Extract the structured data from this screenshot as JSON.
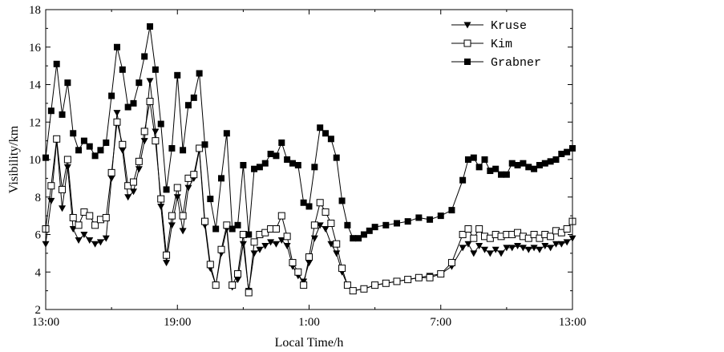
{
  "chart_data": {
    "type": "line",
    "xlabel": "Local Time/h",
    "ylabel": "Visibility/km",
    "xlim": [
      0,
      24
    ],
    "ylim": [
      2,
      18
    ],
    "x_ticks": [
      {
        "value": 0,
        "label": "13:00"
      },
      {
        "value": 6,
        "label": "19:00"
      },
      {
        "value": 12,
        "label": "1:00"
      },
      {
        "value": 18,
        "label": "7:00"
      },
      {
        "value": 24,
        "label": "13:00"
      }
    ],
    "y_ticks": [
      2,
      4,
      6,
      8,
      10,
      12,
      14,
      16,
      18
    ],
    "legend_position": "top-right",
    "series": [
      {
        "name": "Kruse",
        "marker": "triangle-down",
        "color": "#000000",
        "points": [
          [
            0,
            5.5
          ],
          [
            0.25,
            7.8
          ],
          [
            0.5,
            11.0
          ],
          [
            0.75,
            7.4
          ],
          [
            1.0,
            9.6
          ],
          [
            1.25,
            6.3
          ],
          [
            1.5,
            5.7
          ],
          [
            1.75,
            6.0
          ],
          [
            2.0,
            5.7
          ],
          [
            2.25,
            5.5
          ],
          [
            2.5,
            5.6
          ],
          [
            2.75,
            5.8
          ],
          [
            3.0,
            9.0
          ],
          [
            3.25,
            12.5
          ],
          [
            3.5,
            10.5
          ],
          [
            3.75,
            8.0
          ],
          [
            4.0,
            8.3
          ],
          [
            4.25,
            9.5
          ],
          [
            4.5,
            11.0
          ],
          [
            4.75,
            14.2
          ],
          [
            5.0,
            11.5
          ],
          [
            5.25,
            7.5
          ],
          [
            5.5,
            4.5
          ],
          [
            5.75,
            6.5
          ],
          [
            6.0,
            8.0
          ],
          [
            6.25,
            6.2
          ],
          [
            6.5,
            8.5
          ],
          [
            6.75,
            9.0
          ],
          [
            7.0,
            10.5
          ],
          [
            7.25,
            6.5
          ],
          [
            7.5,
            4.2
          ],
          [
            7.75,
            3.3
          ],
          [
            8.0,
            5.0
          ],
          [
            8.25,
            6.3
          ],
          [
            8.5,
            3.2
          ],
          [
            8.75,
            3.6
          ],
          [
            9.0,
            5.5
          ],
          [
            9.25,
            3.0
          ],
          [
            9.5,
            5.0
          ],
          [
            9.75,
            5.2
          ],
          [
            10.0,
            5.4
          ],
          [
            10.25,
            5.6
          ],
          [
            10.5,
            5.5
          ],
          [
            10.75,
            5.7
          ],
          [
            11.0,
            5.4
          ],
          [
            11.25,
            4.3
          ],
          [
            11.5,
            3.8
          ],
          [
            11.75,
            3.5
          ],
          [
            12.0,
            4.5
          ],
          [
            12.25,
            5.8
          ],
          [
            12.5,
            6.5
          ],
          [
            12.75,
            6.3
          ],
          [
            13.0,
            5.5
          ],
          [
            13.25,
            5.0
          ],
          [
            13.5,
            4.0
          ],
          [
            13.75,
            3.3
          ],
          [
            14.0,
            3.0
          ],
          [
            14.5,
            3.1
          ],
          [
            15.0,
            3.3
          ],
          [
            15.5,
            3.4
          ],
          [
            16.0,
            3.5
          ],
          [
            16.5,
            3.6
          ],
          [
            17.0,
            3.7
          ],
          [
            17.5,
            3.8
          ],
          [
            18.0,
            3.9
          ],
          [
            18.5,
            4.3
          ],
          [
            19.0,
            5.3
          ],
          [
            19.25,
            5.5
          ],
          [
            19.5,
            5.0
          ],
          [
            19.75,
            5.4
          ],
          [
            20.0,
            5.2
          ],
          [
            20.25,
            5.0
          ],
          [
            20.5,
            5.2
          ],
          [
            20.75,
            5.0
          ],
          [
            21.0,
            5.3
          ],
          [
            21.25,
            5.3
          ],
          [
            21.5,
            5.4
          ],
          [
            21.75,
            5.3
          ],
          [
            22.0,
            5.2
          ],
          [
            22.25,
            5.3
          ],
          [
            22.5,
            5.2
          ],
          [
            22.75,
            5.4
          ],
          [
            23.0,
            5.3
          ],
          [
            23.25,
            5.5
          ],
          [
            23.5,
            5.5
          ],
          [
            23.75,
            5.6
          ],
          [
            24.0,
            5.8
          ]
        ]
      },
      {
        "name": "Kim",
        "marker": "square-open",
        "color": "#000000",
        "points": [
          [
            0,
            6.3
          ],
          [
            0.25,
            8.6
          ],
          [
            0.5,
            11.1
          ],
          [
            0.75,
            8.4
          ],
          [
            1.0,
            10.0
          ],
          [
            1.25,
            6.9
          ],
          [
            1.5,
            6.5
          ],
          [
            1.75,
            7.2
          ],
          [
            2.0,
            7.0
          ],
          [
            2.25,
            6.5
          ],
          [
            2.5,
            6.8
          ],
          [
            2.75,
            6.9
          ],
          [
            3.0,
            9.3
          ],
          [
            3.25,
            12.0
          ],
          [
            3.5,
            10.8
          ],
          [
            3.75,
            8.6
          ],
          [
            4.0,
            8.8
          ],
          [
            4.25,
            9.9
          ],
          [
            4.5,
            11.5
          ],
          [
            4.75,
            13.1
          ],
          [
            5.0,
            11.0
          ],
          [
            5.25,
            7.9
          ],
          [
            5.5,
            4.9
          ],
          [
            5.75,
            7.0
          ],
          [
            6.0,
            8.5
          ],
          [
            6.25,
            7.0
          ],
          [
            6.5,
            9.0
          ],
          [
            6.75,
            9.2
          ],
          [
            7.0,
            10.6
          ],
          [
            7.25,
            6.7
          ],
          [
            7.5,
            4.4
          ],
          [
            7.75,
            3.3
          ],
          [
            8.0,
            5.2
          ],
          [
            8.25,
            6.5
          ],
          [
            8.5,
            3.3
          ],
          [
            8.75,
            3.9
          ],
          [
            9.0,
            6.0
          ],
          [
            9.25,
            2.9
          ],
          [
            9.5,
            5.6
          ],
          [
            9.75,
            6.0
          ],
          [
            10.0,
            6.1
          ],
          [
            10.25,
            6.3
          ],
          [
            10.5,
            6.3
          ],
          [
            10.75,
            7.0
          ],
          [
            11.0,
            5.9
          ],
          [
            11.25,
            4.5
          ],
          [
            11.5,
            4.0
          ],
          [
            11.75,
            3.3
          ],
          [
            12.0,
            4.8
          ],
          [
            12.25,
            6.5
          ],
          [
            12.5,
            7.7
          ],
          [
            12.75,
            7.2
          ],
          [
            13.0,
            6.6
          ],
          [
            13.25,
            5.5
          ],
          [
            13.5,
            4.2
          ],
          [
            13.75,
            3.3
          ],
          [
            14.0,
            3.0
          ],
          [
            14.5,
            3.1
          ],
          [
            15.0,
            3.3
          ],
          [
            15.5,
            3.4
          ],
          [
            16.0,
            3.5
          ],
          [
            16.5,
            3.6
          ],
          [
            17.0,
            3.7
          ],
          [
            17.5,
            3.7
          ],
          [
            18.0,
            3.9
          ],
          [
            18.5,
            4.5
          ],
          [
            19.0,
            6.0
          ],
          [
            19.25,
            6.3
          ],
          [
            19.5,
            5.8
          ],
          [
            19.75,
            6.3
          ],
          [
            20.0,
            5.9
          ],
          [
            20.25,
            5.8
          ],
          [
            20.5,
            6.0
          ],
          [
            20.75,
            5.9
          ],
          [
            21.0,
            6.0
          ],
          [
            21.25,
            6.0
          ],
          [
            21.5,
            6.1
          ],
          [
            21.75,
            5.9
          ],
          [
            22.0,
            5.8
          ],
          [
            22.25,
            6.0
          ],
          [
            22.5,
            5.8
          ],
          [
            22.75,
            6.0
          ],
          [
            23.0,
            5.9
          ],
          [
            23.25,
            6.2
          ],
          [
            23.5,
            6.1
          ],
          [
            23.75,
            6.3
          ],
          [
            24.0,
            6.7
          ]
        ]
      },
      {
        "name": "Grabner",
        "marker": "square-filled",
        "color": "#000000",
        "points": [
          [
            0,
            10.1
          ],
          [
            0.25,
            12.6
          ],
          [
            0.5,
            15.1
          ],
          [
            0.75,
            12.4
          ],
          [
            1.0,
            14.1
          ],
          [
            1.25,
            11.4
          ],
          [
            1.5,
            10.5
          ],
          [
            1.75,
            11.0
          ],
          [
            2.0,
            10.7
          ],
          [
            2.25,
            10.2
          ],
          [
            2.5,
            10.5
          ],
          [
            2.75,
            10.9
          ],
          [
            3.0,
            13.4
          ],
          [
            3.25,
            16.0
          ],
          [
            3.5,
            14.8
          ],
          [
            3.75,
            12.8
          ],
          [
            4.0,
            13.0
          ],
          [
            4.25,
            14.1
          ],
          [
            4.5,
            15.5
          ],
          [
            4.75,
            17.1
          ],
          [
            5.0,
            14.8
          ],
          [
            5.25,
            11.9
          ],
          [
            5.5,
            8.4
          ],
          [
            5.75,
            10.6
          ],
          [
            6.0,
            14.5
          ],
          [
            6.25,
            10.5
          ],
          [
            6.5,
            12.9
          ],
          [
            6.75,
            13.3
          ],
          [
            7.0,
            14.6
          ],
          [
            7.25,
            10.8
          ],
          [
            7.5,
            7.9
          ],
          [
            7.75,
            6.3
          ],
          [
            8.0,
            9.0
          ],
          [
            8.25,
            11.4
          ],
          [
            8.5,
            6.3
          ],
          [
            8.75,
            6.5
          ],
          [
            9.0,
            9.7
          ],
          [
            9.25,
            6.0
          ],
          [
            9.5,
            9.5
          ],
          [
            9.75,
            9.6
          ],
          [
            10.0,
            9.8
          ],
          [
            10.25,
            10.3
          ],
          [
            10.5,
            10.2
          ],
          [
            10.75,
            10.9
          ],
          [
            11.0,
            10.0
          ],
          [
            11.25,
            9.8
          ],
          [
            11.5,
            9.7
          ],
          [
            11.75,
            7.7
          ],
          [
            12.0,
            7.5
          ],
          [
            12.25,
            9.6
          ],
          [
            12.5,
            11.7
          ],
          [
            12.75,
            11.4
          ],
          [
            13.0,
            11.1
          ],
          [
            13.25,
            10.1
          ],
          [
            13.5,
            7.8
          ],
          [
            13.75,
            6.5
          ],
          [
            14.0,
            5.8
          ],
          [
            14.25,
            5.8
          ],
          [
            14.5,
            6.0
          ],
          [
            14.75,
            6.2
          ],
          [
            15.0,
            6.4
          ],
          [
            15.5,
            6.5
          ],
          [
            16.0,
            6.6
          ],
          [
            16.5,
            6.7
          ],
          [
            17.0,
            6.9
          ],
          [
            17.5,
            6.8
          ],
          [
            18.0,
            7.0
          ],
          [
            18.5,
            7.3
          ],
          [
            19.0,
            8.9
          ],
          [
            19.25,
            10.0
          ],
          [
            19.5,
            10.1
          ],
          [
            19.75,
            9.6
          ],
          [
            20.0,
            10.0
          ],
          [
            20.25,
            9.4
          ],
          [
            20.5,
            9.5
          ],
          [
            20.75,
            9.2
          ],
          [
            21.0,
            9.2
          ],
          [
            21.25,
            9.8
          ],
          [
            21.5,
            9.7
          ],
          [
            21.75,
            9.8
          ],
          [
            22.0,
            9.6
          ],
          [
            22.25,
            9.5
          ],
          [
            22.5,
            9.7
          ],
          [
            22.75,
            9.8
          ],
          [
            23.0,
            9.9
          ],
          [
            23.25,
            10.0
          ],
          [
            23.5,
            10.3
          ],
          [
            23.75,
            10.4
          ],
          [
            24.0,
            10.6
          ]
        ]
      }
    ]
  }
}
